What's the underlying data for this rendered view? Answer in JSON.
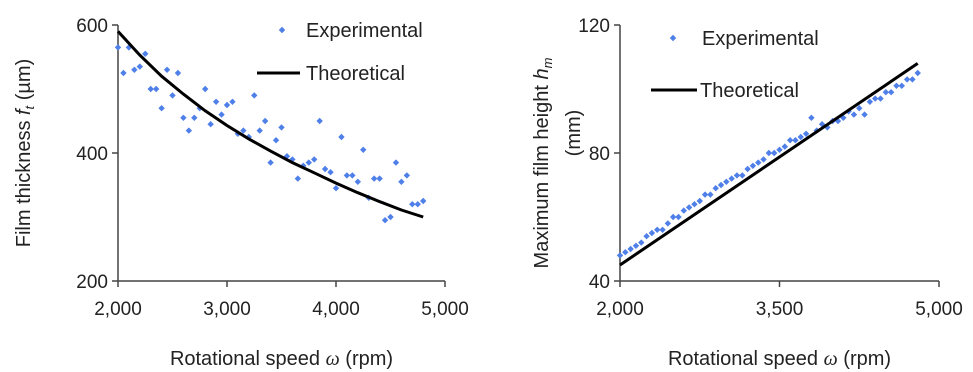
{
  "colors": {
    "experimental": "#4f7fe8",
    "theoretical": "#000000",
    "axis": "#444444"
  },
  "chart_data": [
    {
      "type": "scatter",
      "xlabel_prefix": "Rotational speed ",
      "xlabel_symbol": "ω",
      "xlabel_suffix": " (rpm)",
      "ylabel_prefix": "Film thickness ",
      "ylabel_symbol": "f",
      "ylabel_sub": "t",
      "ylabel_suffix": " (µm)",
      "xlim": [
        2000,
        5000
      ],
      "ylim": [
        200,
        600
      ],
      "xticks": [
        2000,
        3000,
        4000,
        5000
      ],
      "xtick_labels": [
        "2,000",
        "3,000",
        "4,000",
        "5,000"
      ],
      "yticks": [
        200,
        400,
        600
      ],
      "ytick_labels": [
        "200",
        "400",
        "600"
      ],
      "grid": false,
      "legend_position": "top-right",
      "series": [
        {
          "name": "Experimental",
          "type": "scatter",
          "x": [
            2000,
            2050,
            2100,
            2150,
            2200,
            2250,
            2300,
            2350,
            2400,
            2450,
            2500,
            2550,
            2600,
            2650,
            2700,
            2750,
            2800,
            2850,
            2900,
            2950,
            3000,
            3050,
            3100,
            3150,
            3200,
            3250,
            3300,
            3350,
            3400,
            3450,
            3500,
            3550,
            3600,
            3650,
            3700,
            3750,
            3800,
            3850,
            3900,
            3950,
            4000,
            4050,
            4100,
            4150,
            4200,
            4250,
            4300,
            4350,
            4400,
            4450,
            4500,
            4550,
            4600,
            4650,
            4700,
            4750,
            4800
          ],
          "y": [
            565,
            525,
            565,
            530,
            535,
            555,
            500,
            500,
            470,
            530,
            490,
            525,
            455,
            435,
            455,
            470,
            500,
            445,
            480,
            460,
            475,
            480,
            430,
            435,
            425,
            490,
            435,
            450,
            385,
            420,
            440,
            395,
            390,
            360,
            380,
            385,
            390,
            450,
            375,
            370,
            345,
            425,
            365,
            365,
            355,
            405,
            330,
            360,
            360,
            295,
            300,
            385,
            355,
            365,
            320,
            320,
            325
          ]
        },
        {
          "name": "Theoretical",
          "type": "line",
          "x": [
            2000,
            2200,
            2400,
            2600,
            2800,
            3000,
            3200,
            3400,
            3600,
            3800,
            4000,
            4200,
            4400,
            4600,
            4800
          ],
          "y": [
            590,
            553,
            520,
            492,
            466,
            443,
            422,
            403,
            385,
            369,
            353,
            338,
            324,
            311,
            300
          ]
        }
      ]
    },
    {
      "type": "scatter",
      "xlabel_prefix": "Rotational speed ",
      "xlabel_symbol": "ω",
      "xlabel_suffix": " (rpm)",
      "ylabel_line1_prefix": "Maximum film height ",
      "ylabel_line1_symbol": "h",
      "ylabel_line1_sub": "m",
      "ylabel_line2": "(mm)",
      "xlim": [
        2000,
        5000
      ],
      "ylim": [
        40,
        120
      ],
      "xticks": [
        2000,
        3500,
        5000
      ],
      "xtick_labels": [
        "2,000",
        "3,500",
        "5,000"
      ],
      "yticks": [
        40,
        80,
        120
      ],
      "ytick_labels": [
        "40",
        "80",
        "120"
      ],
      "grid": false,
      "legend_position": "top-left",
      "series": [
        {
          "name": "Experimental",
          "type": "scatter",
          "x": [
            2000,
            2050,
            2100,
            2150,
            2200,
            2250,
            2300,
            2350,
            2400,
            2450,
            2500,
            2550,
            2600,
            2650,
            2700,
            2750,
            2800,
            2850,
            2900,
            2950,
            3000,
            3050,
            3100,
            3150,
            3200,
            3250,
            3300,
            3350,
            3400,
            3450,
            3500,
            3550,
            3600,
            3650,
            3700,
            3750,
            3800,
            3850,
            3900,
            3950,
            4000,
            4050,
            4100,
            4150,
            4200,
            4250,
            4300,
            4350,
            4400,
            4450,
            4500,
            4550,
            4600,
            4650,
            4700,
            4750,
            4800
          ],
          "y": [
            48,
            49,
            50,
            51,
            52,
            54,
            55,
            56,
            56,
            58,
            60,
            60,
            62,
            63,
            64,
            65,
            67,
            67,
            69,
            70,
            71,
            72,
            73,
            73,
            75,
            76,
            77,
            78,
            80,
            80,
            81,
            82,
            84,
            84,
            85,
            86,
            91,
            87,
            89,
            88,
            90,
            90,
            91,
            93,
            92,
            94,
            92,
            96,
            97,
            97,
            99,
            99,
            101,
            101,
            103,
            103,
            105
          ]
        },
        {
          "name": "Theoretical",
          "type": "line",
          "x": [
            2000,
            4800
          ],
          "y": [
            45,
            108
          ]
        }
      ]
    }
  ]
}
